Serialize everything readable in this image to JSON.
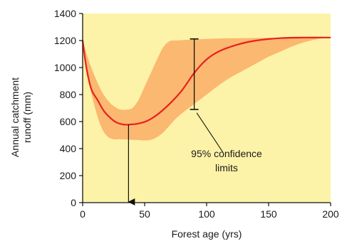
{
  "colors": {
    "plot_bg": "#fdf3a8",
    "band": "#fbb870",
    "mean_line": "#e8201e",
    "axis": "#111111"
  },
  "chart_data": {
    "type": "area",
    "title": "",
    "xlabel": "Forest age (yrs)",
    "ylabel_line1": "Annual catchment",
    "ylabel_line2": "runoff (mm)",
    "xlim": [
      0,
      200
    ],
    "ylim": [
      0,
      1400
    ],
    "x_ticks": [
      0,
      50,
      100,
      150,
      200
    ],
    "y_ticks": [
      0,
      200,
      400,
      600,
      800,
      1000,
      1200,
      1400
    ],
    "grid": false,
    "series": [
      {
        "x": [
          0,
          3,
          7,
          12,
          17,
          22,
          27,
          33,
          38,
          45,
          52,
          60,
          70,
          80,
          90,
          100,
          110,
          125,
          140,
          160,
          180,
          200
        ],
        "values": [
          1200,
          1000,
          840,
          760,
          680,
          630,
          595,
          578,
          578,
          585,
          605,
          650,
          730,
          830,
          960,
          1060,
          1120,
          1170,
          1200,
          1218,
          1222,
          1222
        ]
      }
    ],
    "confidence_band": {
      "x": [
        0,
        5,
        10,
        15,
        20,
        25,
        30,
        35,
        40,
        45,
        50,
        55,
        60,
        65,
        70,
        75,
        80,
        90,
        100,
        110,
        120,
        130,
        140,
        150,
        160,
        170,
        180,
        190,
        200
      ],
      "upper": [
        1200,
        1050,
        930,
        830,
        760,
        715,
        690,
        688,
        700,
        760,
        860,
        960,
        1060,
        1150,
        1195,
        1200,
        1203,
        1208,
        1212,
        1215,
        1217,
        1218,
        1219,
        1220,
        1221,
        1222,
        1222,
        1222,
        1222
      ],
      "lower": [
        1200,
        900,
        700,
        560,
        490,
        470,
        470,
        468,
        465,
        463,
        460,
        465,
        485,
        520,
        570,
        620,
        660,
        730,
        800,
        870,
        930,
        980,
        1030,
        1080,
        1120,
        1160,
        1190,
        1212,
        1222
      ]
    },
    "annotations": {
      "min_arrow": {
        "x": 37,
        "y_from": 578,
        "y_to": 0
      },
      "ci_bar": {
        "x": 90,
        "y_low": 690,
        "y_high": 1212
      },
      "ci_label_line1": "95% confidence",
      "ci_label_line2": "limits",
      "pointer": {
        "from_x": 113,
        "from_y": 375,
        "to_x": 92,
        "to_y": 665
      }
    }
  }
}
